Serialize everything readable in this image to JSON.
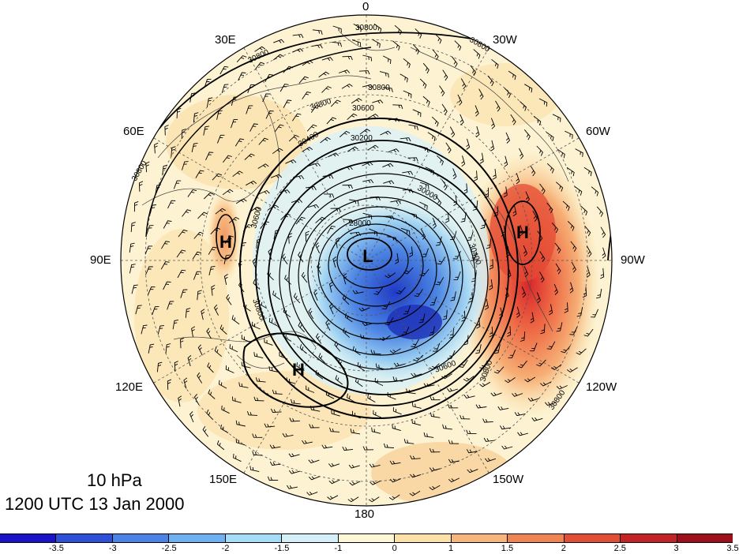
{
  "level_label": "10 hPa",
  "time_label": "1200 UTC 13 Jan 2000",
  "longitude_labels": {
    "top": "0",
    "bottom": "180",
    "left": "90E",
    "right": "90W",
    "upper_left_1": "30E",
    "upper_left_2": "60E",
    "lower_left_1": "120E",
    "lower_left_2": "150E",
    "upper_right_1": "30W",
    "upper_right_2": "60W",
    "lower_right_1": "120W",
    "lower_right_2": "150W"
  },
  "pressure_centers": [
    {
      "symbol": "L"
    },
    {
      "symbol": "H"
    },
    {
      "symbol": "H"
    },
    {
      "symbol": "H"
    }
  ],
  "contour_labels": [
    "30800",
    "30800",
    "30800",
    "30800",
    "30800",
    "30600",
    "30400",
    "30200",
    "30000",
    "28000",
    "30600",
    "30400",
    "30800",
    "30800",
    "30600",
    "30800",
    "30800"
  ],
  "colorbar": {
    "colors": [
      "#1a12c9",
      "#2e4fd8",
      "#4b82e6",
      "#6fb1f0",
      "#a5dcf7",
      "#d3f0f9",
      "#fdf7d5",
      "#fbe0a8",
      "#f6b57a",
      "#ef8351",
      "#e14e35",
      "#c42325",
      "#9e0f1c"
    ],
    "ticks": [
      "-3.5",
      "-3",
      "-2.5",
      "-2",
      "-1.5",
      "-1",
      "0",
      "1",
      "1.5",
      "2",
      "2.5",
      "3",
      "3.5"
    ]
  }
}
